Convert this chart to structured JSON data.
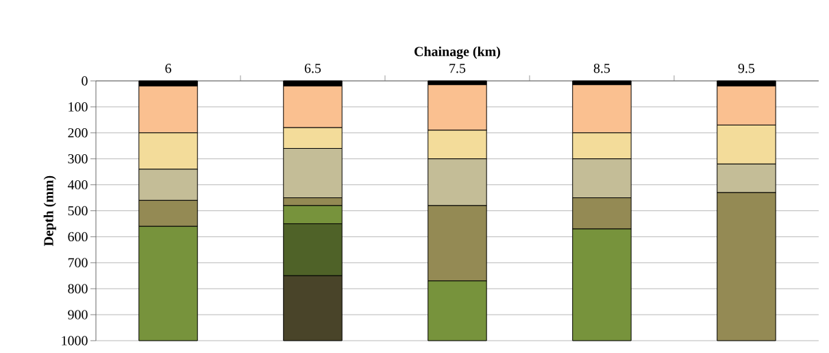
{
  "chart_data": {
    "type": "bar",
    "stacked": true,
    "xlabel": "Chainage (km)",
    "ylabel": "Depth (mm)",
    "categories": [
      "6",
      "6.5",
      "7.5",
      "8.5",
      "9.5"
    ],
    "series": [
      {
        "color": "#000000",
        "values": [
          20,
          20,
          15,
          15,
          20
        ]
      },
      {
        "color": "#fac090",
        "values": [
          180,
          160,
          175,
          185,
          150
        ]
      },
      {
        "color": "#f3dc9a",
        "values": [
          140,
          80,
          110,
          100,
          150
        ]
      },
      {
        "color": "#c4bd97",
        "values": [
          120,
          190,
          180,
          150,
          110
        ]
      },
      {
        "color": "#948a54",
        "values": [
          100,
          30,
          290,
          120,
          570
        ]
      },
      {
        "color": "#77933c",
        "values": [
          440,
          70,
          230,
          430,
          null
        ]
      },
      {
        "color": "#4f6228",
        "values": [
          null,
          200,
          null,
          null,
          null
        ]
      },
      {
        "color": "#494429",
        "values": [
          null,
          250,
          null,
          null,
          null
        ]
      }
    ],
    "ylim": [
      1000,
      0
    ],
    "yticks": [
      0,
      100,
      200,
      300,
      400,
      500,
      600,
      700,
      800,
      900,
      1000
    ],
    "grid": "y"
  }
}
